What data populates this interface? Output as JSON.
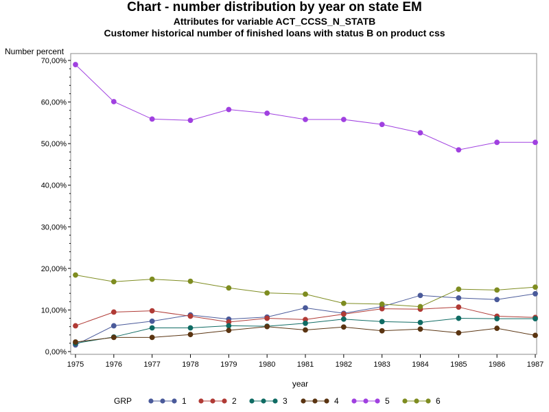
{
  "chart_data": {
    "type": "line",
    "title": "Chart - number distribution by year on state EM",
    "subtitles": [
      "Attributes for variable ACT_CCSS_N_STATB",
      "Customer historical number of finished loans with status B on product css"
    ],
    "xlabel": "year",
    "ylabel": "Number percent",
    "x": [
      1975,
      1976,
      1977,
      1978,
      1979,
      1980,
      1981,
      1982,
      1983,
      1984,
      1985,
      1986,
      1987
    ],
    "x_tick_labels": [
      "1975",
      "1976",
      "1977",
      "1978",
      "1979",
      "1980",
      "1981",
      "1982",
      "1983",
      "1984",
      "1985",
      "1986",
      "1987"
    ],
    "ylim": [
      0,
      0.7
    ],
    "y_ticks": [
      0,
      0.1,
      0.2,
      0.3,
      0.4,
      0.5,
      0.6,
      0.7
    ],
    "y_tick_labels": [
      "0,00%",
      "10,00%",
      "20,00%",
      "30,00%",
      "40,00%",
      "50,00%",
      "60,00%",
      "70,00%"
    ],
    "grid": false,
    "legend_title": "GRP",
    "legend_position": "bottom",
    "series": [
      {
        "name": "1",
        "color": "#4a5a9a",
        "values": [
          0.016,
          0.062,
          0.073,
          0.088,
          0.078,
          0.083,
          0.105,
          0.092,
          0.108,
          0.135,
          0.129,
          0.125,
          0.139
        ]
      },
      {
        "name": "2",
        "color": "#b03a35",
        "values": [
          0.062,
          0.095,
          0.098,
          0.085,
          0.071,
          0.08,
          0.077,
          0.09,
          0.103,
          0.102,
          0.107,
          0.085,
          0.082
        ]
      },
      {
        "name": "3",
        "color": "#0f6b63",
        "values": [
          0.02,
          0.035,
          0.057,
          0.057,
          0.062,
          0.061,
          0.068,
          0.078,
          0.072,
          0.07,
          0.08,
          0.079,
          0.079
        ]
      },
      {
        "name": "4",
        "color": "#5a3411",
        "values": [
          0.023,
          0.034,
          0.034,
          0.041,
          0.051,
          0.06,
          0.052,
          0.059,
          0.05,
          0.054,
          0.045,
          0.056,
          0.039
        ]
      },
      {
        "name": "5",
        "color": "#a040e0",
        "values": [
          0.69,
          0.601,
          0.559,
          0.556,
          0.582,
          0.573,
          0.558,
          0.558,
          0.546,
          0.526,
          0.485,
          0.503,
          0.503
        ]
      },
      {
        "name": "6",
        "color": "#7e8c20",
        "values": [
          0.184,
          0.168,
          0.174,
          0.169,
          0.153,
          0.141,
          0.138,
          0.116,
          0.114,
          0.108,
          0.15,
          0.148,
          0.155
        ]
      }
    ]
  }
}
